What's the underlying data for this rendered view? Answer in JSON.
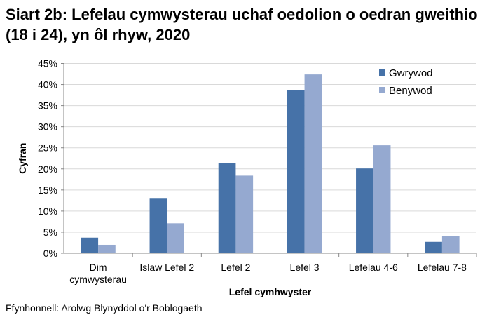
{
  "chart_data": {
    "type": "bar",
    "title": "Siart 2b: Lefelau cymwysterau uchaf oedolion o oedran gweithio (18 i 24), yn ôl rhyw, 2020",
    "xlabel": "Lefel cymhwyster",
    "ylabel": "Cyfran",
    "categories": [
      [
        "Dim",
        "cymwysterau"
      ],
      [
        "Islaw Lefel 2"
      ],
      [
        "Lefel 2"
      ],
      [
        "Lefel 3"
      ],
      [
        "Lefelau 4-6"
      ],
      [
        "Lefelau 7-8"
      ]
    ],
    "series": [
      {
        "name": "Gwrywod",
        "color": "#4672a8",
        "values": [
          3.7,
          13.1,
          21.4,
          38.7,
          20.1,
          2.7
        ]
      },
      {
        "name": "Benywod",
        "color": "#95a9d0",
        "values": [
          2.0,
          7.1,
          18.4,
          42.4,
          25.6,
          4.1
        ]
      }
    ],
    "ylim": [
      0,
      45
    ],
    "yticks": [
      "0%",
      "5%",
      "10%",
      "15%",
      "20%",
      "25%",
      "30%",
      "35%",
      "40%",
      "45%"
    ],
    "grid": true,
    "legend": "top-right"
  },
  "source": "Ffynhonnell: Arolwg Blynyddol o'r Boblogaeth"
}
